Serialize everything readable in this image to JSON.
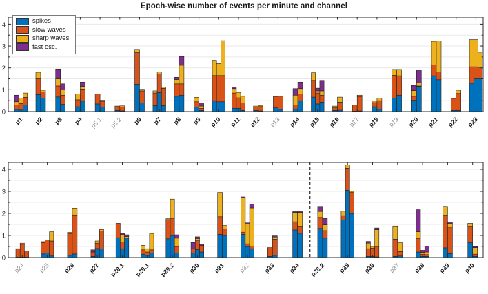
{
  "chart_data": {
    "type": "bar",
    "stacked": true,
    "title": "Epoch-wise number of events per minute and channel",
    "xlabel": "",
    "ylabel": "",
    "ylim": [
      0,
      4.3
    ],
    "yticks": [
      0,
      1,
      2,
      3,
      4
    ],
    "grid": true,
    "legend_position": "top-left",
    "series": [
      {
        "name": "spikes",
        "color": "#0072BD"
      },
      {
        "name": "slow waves",
        "color": "#D95319"
      },
      {
        "name": "sharp waves",
        "color": "#EDB120"
      },
      {
        "name": "fast osc.",
        "color": "#7E2F8E"
      }
    ],
    "bar_order_note": "each bar array = events per minute stacked as [spikes, slow waves, sharp waves, fast osc.]; each group = one patient, one bar per channel",
    "panels": [
      {
        "name": "top",
        "groups": [
          {
            "label": "p1",
            "muted": false,
            "bars": [
              [
                0.1,
                0.2,
                0.15,
                0.3
              ],
              [
                0.07,
                0.3,
                0.25,
                0
              ],
              [
                0.3,
                0.35,
                0.2,
                0
              ]
            ]
          },
          {
            "label": "p2",
            "muted": false,
            "bars": [
              [
                0.78,
                0.72,
                0.3,
                0
              ],
              [
                0.62,
                0.28,
                0.08,
                0
              ]
            ]
          },
          {
            "label": "p3",
            "muted": false,
            "bars": [
              [
                0.67,
                0.5,
                0.33,
                0.45
              ],
              [
                0.33,
                0.42,
                0.25,
                0.27
              ]
            ]
          },
          {
            "label": "p4",
            "muted": false,
            "bars": [
              [
                0.22,
                0.32,
                0.26,
                0
              ],
              [
                0.48,
                0.55,
                0.12,
                0.2
              ]
            ]
          },
          {
            "label": "p5.1",
            "muted": true,
            "bars": [
              [
                0.35,
                0.45,
                0,
                0
              ],
              [
                0.2,
                0.27,
                0.05,
                0
              ]
            ]
          },
          {
            "label": "p5.2",
            "muted": true,
            "bars": [
              [
                0.05,
                0.2,
                0,
                0
              ],
              [
                0.03,
                0.18,
                0.05,
                0
              ]
            ]
          },
          {
            "label": "p6",
            "muted": false,
            "bars": [
              [
                1.25,
                1.45,
                0.15,
                0
              ],
              [
                0.4,
                0.55,
                0.07,
                0
              ]
            ]
          },
          {
            "label": "p7",
            "muted": false,
            "bars": [
              [
                0.27,
                0.58,
                0.1,
                0
              ],
              [
                0.87,
                0.85,
                0.1,
                0
              ],
              [
                0.27,
                0.79,
                0.06,
                0
              ]
            ]
          },
          {
            "label": "p8",
            "muted": false,
            "bars": [
              [
                0.7,
                0.57,
                0.2,
                0.1
              ],
              [
                0.75,
                0.52,
                0.85,
                0.4
              ]
            ]
          },
          {
            "label": "p9",
            "muted": false,
            "bars": [
              [
                0.2,
                0.25,
                0.2,
                0
              ],
              [
                0.05,
                0.1,
                0.1,
                0.15
              ]
            ]
          },
          {
            "label": "p10",
            "muted": false,
            "bars": [
              [
                0.5,
                1.15,
                0.7,
                0
              ],
              [
                0.45,
                1.2,
                0.55,
                0
              ],
              [
                0.45,
                1.2,
                1.6,
                0
              ]
            ]
          },
          {
            "label": "p11",
            "muted": false,
            "bars": [
              [
                0.15,
                0.7,
                0.2,
                0.07
              ],
              [
                0.15,
                0.48,
                0.25,
                0
              ],
              [
                0.05,
                0.35,
                0.3,
                0
              ]
            ]
          },
          {
            "label": "p12",
            "muted": false,
            "bars": [
              [
                0.05,
                0.15,
                0.05,
                0
              ],
              [
                0.03,
                0.2,
                0.05,
                0
              ]
            ]
          },
          {
            "label": "p13",
            "muted": true,
            "bars": [
              [
                0.17,
                0.52,
                0,
                0
              ],
              [
                0.1,
                0.6,
                0,
                0
              ]
            ]
          },
          {
            "label": "p14",
            "muted": false,
            "bars": [
              [
                0.12,
                0.18,
                0.45,
                0.3
              ],
              [
                0.5,
                0.3,
                0.25,
                0.3
              ]
            ]
          },
          {
            "label": "p15",
            "muted": false,
            "bars": [
              [
                0.66,
                0.77,
                0.35,
                0
              ],
              [
                0.35,
                0.5,
                0.1,
                0.12
              ],
              [
                0.43,
                0.32,
                0.2,
                0.48
              ]
            ]
          },
          {
            "label": "p16",
            "muted": false,
            "bars": [
              [
                0.05,
                0.12,
                0.08,
                0
              ],
              [
                0.06,
                0.37,
                0.23,
                0
              ]
            ]
          },
          {
            "label": "p17",
            "muted": true,
            "bars": [
              [
                0.02,
                0.28,
                0,
                0
              ],
              [
                0.03,
                0.66,
                0.06,
                0
              ]
            ]
          },
          {
            "label": "p18",
            "muted": false,
            "bars": [
              [
                0.22,
                0.19,
                0.07,
                0
              ],
              [
                0.12,
                0.38,
                0.12,
                0
              ]
            ]
          },
          {
            "label": "p19",
            "muted": true,
            "bars": [
              [
                0.62,
                1.04,
                0.27,
                0
              ],
              [
                0.75,
                0.89,
                0.29,
                0
              ]
            ]
          },
          {
            "label": "p20",
            "muted": false,
            "bars": [
              [
                0.52,
                0.18,
                0.26,
                0.23
              ],
              [
                1.15,
                0.02,
                0.15,
                0.58
              ]
            ]
          },
          {
            "label": "p21",
            "muted": false,
            "bars": [
              [
                1.64,
                0.5,
                1.08,
                0
              ],
              [
                1.46,
                0.36,
                1.42,
                0
              ]
            ]
          },
          {
            "label": "p22",
            "muted": false,
            "bars": [
              [
                0.05,
                0.55,
                0,
                0
              ],
              [
                0.05,
                0.78,
                0.15,
                0
              ]
            ]
          },
          {
            "label": "p23",
            "muted": false,
            "bars": [
              [
                1.3,
                0.75,
                1.25,
                0
              ],
              [
                1.5,
                0.55,
                1.25,
                0
              ],
              [
                1.5,
                0.5,
                0.72,
                0
              ]
            ]
          }
        ]
      },
      {
        "name": "bottom",
        "separator_before_label": "p28.2",
        "groups": [
          {
            "label": "p24",
            "muted": true,
            "bars": [
              [
                0.02,
                0.38,
                0,
                0
              ],
              [
                0.02,
                0.58,
                0.05,
                0
              ],
              [
                0.02,
                0.28,
                0,
                0
              ]
            ]
          },
          {
            "label": "p25",
            "muted": true,
            "bars": [
              [
                0.16,
                0.52,
                0,
                0.04
              ],
              [
                0.2,
                0.6,
                0,
                0
              ],
              [
                0.07,
                0.68,
                0.42,
                0
              ]
            ]
          },
          {
            "label": "p26",
            "muted": false,
            "bars": [
              [
                0.1,
                0.99,
                0.05,
                0
              ],
              [
                0.16,
                1.77,
                0.31,
                0
              ]
            ]
          },
          {
            "label": "p27",
            "muted": false,
            "bars": [
              [
                0.05,
                0.2,
                0,
                0.1
              ],
              [
                0.41,
                0.24,
                0.1,
                0
              ],
              [
                0.39,
                0.81,
                0.07,
                0
              ]
            ]
          },
          {
            "label": "p28.1",
            "muted": false,
            "bars": [
              [
                0.9,
                0.65,
                0,
                0
              ],
              [
                0.4,
                0.3,
                0.35,
                0.05
              ],
              [
                0.88,
                0,
                0.07,
                0.08
              ]
            ]
          },
          {
            "label": "p29.1",
            "muted": false,
            "bars": [
              [
                0.15,
                0.2,
                0.2,
                0
              ],
              [
                0.1,
                0.15,
                0.15,
                0
              ],
              [
                0.2,
                0.15,
                0.74,
                0
              ]
            ]
          },
          {
            "label": "p29.2",
            "muted": false,
            "bars": [
              [
                0.85,
                0.87,
                0.04,
                0
              ],
              [
                1.0,
                0.78,
                0.87,
                0
              ],
              [
                0.2,
                0.3,
                0.38,
                0.15
              ]
            ]
          },
          {
            "label": "p30",
            "muted": false,
            "bars": [
              [
                0.2,
                0.2,
                0,
                0.28
              ],
              [
                0.36,
                0.4,
                0.1,
                0.08
              ],
              [
                0.25,
                0.3,
                0,
                0.05
              ]
            ]
          },
          {
            "label": "p31",
            "muted": false,
            "bars": [
              [
                1.05,
                0.8,
                1.1,
                0
              ],
              [
                1.0,
                0.3,
                0.15,
                0
              ]
            ]
          },
          {
            "label": "p32",
            "muted": true,
            "bars": [
              [
                1.05,
                0.1,
                1.55,
                0.05
              ],
              [
                0.5,
                0.12,
                0.9,
                0.05
              ],
              [
                0.4,
                0.12,
                1.73,
                0.17
              ]
            ]
          },
          {
            "label": "p33",
            "muted": false,
            "bars": [
              [
                0.05,
                0.4,
                0,
                0
              ],
              [
                0.1,
                0.73,
                0.1,
                0.05
              ]
            ]
          },
          {
            "label": "p34",
            "muted": false,
            "bars": [
              [
                1.25,
                0.37,
                0.42,
                0.04
              ],
              [
                1.1,
                0.32,
                0.62,
                0.04
              ]
            ]
          },
          {
            "label": "p28.2",
            "muted": false,
            "bars": [
              [
                1.32,
                0.5,
                0.27,
                0.23
              ],
              [
                0.88,
                0.34,
                0.26,
                0.29
              ]
            ]
          },
          {
            "label": "p35",
            "muted": false,
            "bars": [
              [
                1.7,
                0.2,
                0.2,
                0
              ],
              [
                3.05,
                1.0,
                0.15,
                0
              ],
              [
                2.0,
                0.95,
                0.05,
                0
              ]
            ]
          },
          {
            "label": "p36",
            "muted": false,
            "bars": [
              [
                0.05,
                0.35,
                0.25,
                0.08
              ],
              [
                0.05,
                0.38,
                0.07,
                0
              ],
              [
                0.03,
                0.45,
                0.78,
                0.08
              ]
            ]
          },
          {
            "label": "p37",
            "muted": true,
            "bars": [
              [
                0.05,
                0.78,
                0.6,
                0
              ],
              [
                0.07,
                0.2,
                0.4,
                0
              ]
            ]
          },
          {
            "label": "p38",
            "muted": false,
            "bars": [
              [
                0.25,
                0.62,
                0.3,
                1.0
              ],
              [
                0.05,
                0.1,
                0.08,
                0.1
              ],
              [
                0.05,
                0.08,
                0.12,
                0.27
              ]
            ]
          },
          {
            "label": "p39",
            "muted": false,
            "bars": [
              [
                0.44,
                1.48,
                0.4,
                0
              ],
              [
                0.18,
                1.2,
                0.17,
                0.05
              ]
            ]
          },
          {
            "label": "p40",
            "muted": false,
            "bars": [
              [
                0.67,
                0.75,
                0.13,
                0
              ],
              [
                0.05,
                0.1,
                0.3,
                0.04
              ]
            ]
          }
        ]
      }
    ]
  }
}
